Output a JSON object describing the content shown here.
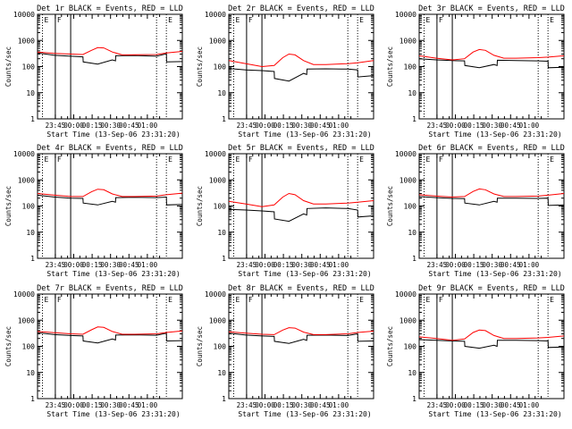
{
  "chart_data": [
    {
      "type": "line",
      "title": "Det 1r BLACK = Events, RED = LLD",
      "ylabel": "Counts/sec",
      "xlabel": "Start Time (13-Sep-06 23:31:20)",
      "yscale": "log",
      "ylim": [
        1,
        10000
      ],
      "yticks": [
        "1",
        "10",
        "100",
        "1000",
        "10000"
      ],
      "xticks": [
        "23:45",
        "00:00",
        "00:15",
        "00:30",
        "00:45",
        "01:00"
      ],
      "xrange_minutes": [
        -34,
        84
      ],
      "markers": [
        {
          "t": -30,
          "style": "dotted",
          "label": "E"
        },
        {
          "t": -19.5,
          "style": "solid",
          "label": "F"
        },
        {
          "t": -7,
          "style": "solid",
          "label": ""
        },
        {
          "t": 63,
          "style": "dotted",
          "label": ""
        },
        {
          "t": 71,
          "style": "dotted",
          "label": "E"
        }
      ],
      "series": [
        {
          "color": "#000000",
          "x": [
            -34,
            -20,
            -7,
            3,
            3.2,
            15,
            27,
            29.5,
            29.7,
            45,
            63,
            71,
            71.2,
            84
          ],
          "values": [
            330,
            270,
            250,
            235,
            150,
            125,
            180,
            165,
            260,
            265,
            250,
            310,
            150,
            155
          ]
        },
        {
          "color": "#ff0000",
          "x": [
            -34,
            -20,
            -7,
            3,
            10,
            15,
            20,
            27,
            35,
            45,
            63,
            71,
            84
          ],
          "values": [
            360,
            320,
            300,
            290,
            420,
            530,
            520,
            360,
            280,
            285,
            290,
            330,
            380
          ]
        }
      ]
    },
    {
      "type": "line",
      "title": "Det 2r BLACK = Events, RED = LLD",
      "ylabel": "Counts/sec",
      "xlabel": "Start Time (13-Sep-06 23:31:20)",
      "yscale": "log",
      "ylim": [
        1,
        10000
      ],
      "yticks": [
        "1",
        "10",
        "100",
        "1000",
        "10000"
      ],
      "xticks": [
        "23:45",
        "00:00",
        "00:15",
        "00:30",
        "00:45",
        "01:00"
      ],
      "xrange_minutes": [
        -34,
        84
      ],
      "markers": [
        {
          "t": -30,
          "style": "dotted",
          "label": "E"
        },
        {
          "t": -19.5,
          "style": "solid",
          "label": "F"
        },
        {
          "t": -7,
          "style": "solid",
          "label": ""
        },
        {
          "t": 63,
          "style": "dotted",
          "label": ""
        },
        {
          "t": 71,
          "style": "dotted",
          "label": "E"
        }
      ],
      "series": [
        {
          "color": "#000000",
          "x": [
            -34,
            -20,
            -7,
            3,
            3.2,
            15,
            27,
            29.5,
            29.7,
            45,
            63,
            71,
            71.2,
            84
          ],
          "values": [
            85,
            75,
            70,
            65,
            35,
            28,
            55,
            50,
            80,
            82,
            80,
            75,
            40,
            45
          ]
        },
        {
          "color": "#ff0000",
          "x": [
            -34,
            -20,
            -7,
            3,
            10,
            15,
            20,
            27,
            35,
            45,
            63,
            71,
            84
          ],
          "values": [
            170,
            130,
            100,
            110,
            220,
            300,
            280,
            170,
            120,
            120,
            130,
            140,
            170
          ]
        }
      ]
    },
    {
      "type": "line",
      "title": "Det 3r BLACK = Events, RED = LLD",
      "ylabel": "Counts/sec",
      "xlabel": "Start Time (13-Sep-06 23:31:20)",
      "yscale": "log",
      "ylim": [
        1,
        10000
      ],
      "yticks": [
        "1",
        "10",
        "100",
        "1000",
        "10000"
      ],
      "xticks": [
        "23:45",
        "00:00",
        "00:15",
        "00:30",
        "00:45",
        "01:00"
      ],
      "xrange_minutes": [
        -34,
        84
      ],
      "markers": [
        {
          "t": -30,
          "style": "dotted",
          "label": "E"
        },
        {
          "t": -19.5,
          "style": "solid",
          "label": "F"
        },
        {
          "t": -7,
          "style": "solid",
          "label": ""
        },
        {
          "t": 63,
          "style": "dotted",
          "label": ""
        },
        {
          "t": 71,
          "style": "dotted",
          "label": "E"
        }
      ],
      "series": [
        {
          "color": "#000000",
          "x": [
            -34,
            -20,
            -7,
            3,
            3.2,
            15,
            27,
            29.5,
            29.7,
            45,
            63,
            71,
            71.2,
            84
          ],
          "values": [
            200,
            180,
            170,
            165,
            110,
            90,
            120,
            110,
            175,
            170,
            165,
            160,
            90,
            95
          ]
        },
        {
          "color": "#ff0000",
          "x": [
            -34,
            -20,
            -7,
            3,
            10,
            15,
            20,
            27,
            35,
            45,
            63,
            71,
            84
          ],
          "values": [
            260,
            210,
            180,
            200,
            360,
            450,
            420,
            270,
            210,
            210,
            220,
            230,
            260
          ]
        }
      ]
    },
    {
      "type": "line",
      "title": "Det 4r BLACK = Events, RED = LLD",
      "ylabel": "Counts/sec",
      "xlabel": "Start Time (13-Sep-06 23:31:20)",
      "yscale": "log",
      "ylim": [
        1,
        10000
      ],
      "yticks": [
        "1",
        "10",
        "100",
        "1000",
        "10000"
      ],
      "xticks": [
        "23:45",
        "00:00",
        "00:15",
        "00:30",
        "00:45",
        "01:00"
      ],
      "xrange_minutes": [
        -34,
        84
      ],
      "markers": [
        {
          "t": -30,
          "style": "dotted",
          "label": "E"
        },
        {
          "t": -19.5,
          "style": "solid",
          "label": "F"
        },
        {
          "t": -7,
          "style": "solid",
          "label": ""
        },
        {
          "t": 63,
          "style": "dotted",
          "label": ""
        },
        {
          "t": 71,
          "style": "dotted",
          "label": "E"
        }
      ],
      "series": [
        {
          "color": "#000000",
          "x": [
            -34,
            -20,
            -7,
            3,
            3.2,
            15,
            27,
            29.5,
            29.7,
            45,
            63,
            71,
            71.2,
            84
          ],
          "values": [
            260,
            220,
            200,
            195,
            130,
            110,
            150,
            140,
            210,
            215,
            210,
            220,
            110,
            115
          ]
        },
        {
          "color": "#ff0000",
          "x": [
            -34,
            -20,
            -7,
            3,
            10,
            15,
            20,
            27,
            35,
            45,
            63,
            71,
            84
          ],
          "values": [
            300,
            260,
            230,
            230,
            350,
            440,
            420,
            290,
            230,
            230,
            240,
            270,
            310
          ]
        }
      ]
    },
    {
      "type": "line",
      "title": "Det 5r BLACK = Events, RED = LLD",
      "ylabel": "Counts/sec",
      "xlabel": "Start Time (13-Sep-06 23:31:20)",
      "yscale": "log",
      "ylim": [
        1,
        10000
      ],
      "yticks": [
        "1",
        "10",
        "100",
        "1000",
        "10000"
      ],
      "xticks": [
        "23:45",
        "00:00",
        "00:15",
        "00:30",
        "00:45",
        "01:00"
      ],
      "xrange_minutes": [
        -34,
        84
      ],
      "markers": [
        {
          "t": -30,
          "style": "dotted",
          "label": "E"
        },
        {
          "t": -19.5,
          "style": "solid",
          "label": "F"
        },
        {
          "t": -7,
          "style": "solid",
          "label": ""
        },
        {
          "t": 63,
          "style": "dotted",
          "label": ""
        },
        {
          "t": 71,
          "style": "dotted",
          "label": "E"
        }
      ],
      "series": [
        {
          "color": "#000000",
          "x": [
            -34,
            -20,
            -7,
            3,
            3.2,
            15,
            27,
            29.5,
            29.7,
            45,
            63,
            71,
            71.2,
            84
          ],
          "values": [
            75,
            70,
            65,
            60,
            32,
            26,
            50,
            45,
            80,
            85,
            80,
            70,
            38,
            42
          ]
        },
        {
          "color": "#ff0000",
          "x": [
            -34,
            -20,
            -7,
            3,
            10,
            15,
            20,
            27,
            35,
            45,
            63,
            71,
            84
          ],
          "values": [
            150,
            120,
            95,
            110,
            220,
            300,
            270,
            160,
            120,
            120,
            130,
            140,
            160
          ]
        }
      ]
    },
    {
      "type": "line",
      "title": "Det 6r BLACK = Events, RED = LLD",
      "ylabel": "Counts/sec",
      "xlabel": "Start Time (13-Sep-06 23:31:20)",
      "yscale": "log",
      "ylim": [
        1,
        10000
      ],
      "yticks": [
        "1",
        "10",
        "100",
        "1000",
        "10000"
      ],
      "xticks": [
        "23:45",
        "00:00",
        "00:15",
        "00:30",
        "00:45",
        "01:00"
      ],
      "xrange_minutes": [
        -34,
        84
      ],
      "markers": [
        {
          "t": -30,
          "style": "dotted",
          "label": "E"
        },
        {
          "t": -19.5,
          "style": "solid",
          "label": "F"
        },
        {
          "t": -7,
          "style": "solid",
          "label": ""
        },
        {
          "t": 63,
          "style": "dotted",
          "label": ""
        },
        {
          "t": 71,
          "style": "dotted",
          "label": "E"
        }
      ],
      "series": [
        {
          "color": "#000000",
          "x": [
            -34,
            -20,
            -7,
            3,
            3.2,
            15,
            27,
            29.5,
            29.7,
            45,
            63,
            71,
            71.2,
            84
          ],
          "values": [
            230,
            210,
            195,
            190,
            130,
            110,
            150,
            140,
            200,
            200,
            195,
            200,
            105,
            110
          ]
        },
        {
          "color": "#ff0000",
          "x": [
            -34,
            -20,
            -7,
            3,
            10,
            15,
            20,
            27,
            35,
            45,
            63,
            71,
            84
          ],
          "values": [
            270,
            240,
            220,
            230,
            360,
            450,
            420,
            290,
            230,
            230,
            240,
            260,
            300
          ]
        }
      ]
    },
    {
      "type": "line",
      "title": "Det 7r BLACK = Events, RED = LLD",
      "ylabel": "Counts/sec",
      "xlabel": "Start Time (13-Sep-06 23:31:20)",
      "yscale": "log",
      "ylim": [
        1,
        10000
      ],
      "yticks": [
        "1",
        "10",
        "100",
        "1000",
        "10000"
      ],
      "xticks": [
        "23:45",
        "00:00",
        "00:15",
        "00:30",
        "00:45",
        "01:00"
      ],
      "xrange_minutes": [
        -34,
        84
      ],
      "markers": [
        {
          "t": -30,
          "style": "dotted",
          "label": "E"
        },
        {
          "t": -19.5,
          "style": "solid",
          "label": "F"
        },
        {
          "t": -7,
          "style": "solid",
          "label": ""
        },
        {
          "t": 63,
          "style": "dotted",
          "label": ""
        },
        {
          "t": 71,
          "style": "dotted",
          "label": "E"
        }
      ],
      "series": [
        {
          "color": "#000000",
          "x": [
            -34,
            -20,
            -7,
            3,
            3.2,
            15,
            27,
            29.5,
            29.7,
            45,
            63,
            71,
            71.2,
            84
          ],
          "values": [
            330,
            280,
            260,
            250,
            160,
            135,
            190,
            175,
            270,
            275,
            265,
            320,
            160,
            165
          ]
        },
        {
          "color": "#ff0000",
          "x": [
            -34,
            -20,
            -7,
            3,
            10,
            15,
            20,
            27,
            35,
            45,
            63,
            71,
            84
          ],
          "values": [
            370,
            330,
            300,
            290,
            430,
            550,
            530,
            370,
            290,
            290,
            300,
            340,
            390
          ]
        }
      ]
    },
    {
      "type": "line",
      "title": "Det 8r BLACK = Events, RED = LLD",
      "ylabel": "Counts/sec",
      "xlabel": "Start Time (13-Sep-06 23:31:20)",
      "yscale": "log",
      "ylim": [
        1,
        10000
      ],
      "yticks": [
        "1",
        "10",
        "100",
        "1000",
        "10000"
      ],
      "xticks": [
        "23:45",
        "00:00",
        "00:15",
        "00:30",
        "00:45",
        "01:00"
      ],
      "xrange_minutes": [
        -34,
        84
      ],
      "markers": [
        {
          "t": -30,
          "style": "dotted",
          "label": "E"
        },
        {
          "t": -19.5,
          "style": "solid",
          "label": "F"
        },
        {
          "t": -7,
          "style": "solid",
          "label": ""
        },
        {
          "t": 63,
          "style": "dotted",
          "label": ""
        },
        {
          "t": 71,
          "style": "dotted",
          "label": "E"
        }
      ],
      "series": [
        {
          "color": "#000000",
          "x": [
            -34,
            -20,
            -7,
            3,
            3.2,
            15,
            27,
            29.5,
            29.7,
            45,
            63,
            71,
            71.2,
            84
          ],
          "values": [
            320,
            270,
            250,
            240,
            155,
            130,
            185,
            170,
            265,
            270,
            260,
            300,
            155,
            160
          ]
        },
        {
          "color": "#ff0000",
          "x": [
            -34,
            -20,
            -7,
            3,
            10,
            15,
            20,
            27,
            35,
            45,
            63,
            71,
            84
          ],
          "values": [
            360,
            320,
            290,
            280,
            420,
            520,
            500,
            350,
            280,
            280,
            300,
            340,
            380
          ]
        }
      ]
    },
    {
      "type": "line",
      "title": "Det 9r BLACK = Events, RED = LLD",
      "ylabel": "Counts/sec",
      "xlabel": "Start Time (13-Sep-06 23:31:20)",
      "yscale": "log",
      "ylim": [
        1,
        10000
      ],
      "yticks": [
        "1",
        "10",
        "100",
        "1000",
        "10000"
      ],
      "xticks": [
        "23:45",
        "00:00",
        "00:15",
        "00:30",
        "00:45",
        "01:00"
      ],
      "xrange_minutes": [
        -34,
        84
      ],
      "markers": [
        {
          "t": -30,
          "style": "dotted",
          "label": "E"
        },
        {
          "t": -19.5,
          "style": "solid",
          "label": "F"
        },
        {
          "t": -7,
          "style": "solid",
          "label": ""
        },
        {
          "t": 63,
          "style": "dotted",
          "label": ""
        },
        {
          "t": 71,
          "style": "dotted",
          "label": "E"
        }
      ],
      "series": [
        {
          "color": "#000000",
          "x": [
            -34,
            -20,
            -7,
            3,
            3.2,
            15,
            27,
            29.5,
            29.7,
            45,
            63,
            71,
            71.2,
            84
          ],
          "values": [
            180,
            170,
            160,
            155,
            100,
            85,
            110,
            100,
            170,
            170,
            165,
            160,
            90,
            95
          ]
        },
        {
          "color": "#ff0000",
          "x": [
            -34,
            -20,
            -7,
            3,
            10,
            15,
            20,
            27,
            35,
            45,
            63,
            71,
            84
          ],
          "values": [
            230,
            200,
            170,
            190,
            340,
            420,
            400,
            260,
            200,
            200,
            210,
            220,
            250
          ]
        }
      ]
    }
  ]
}
